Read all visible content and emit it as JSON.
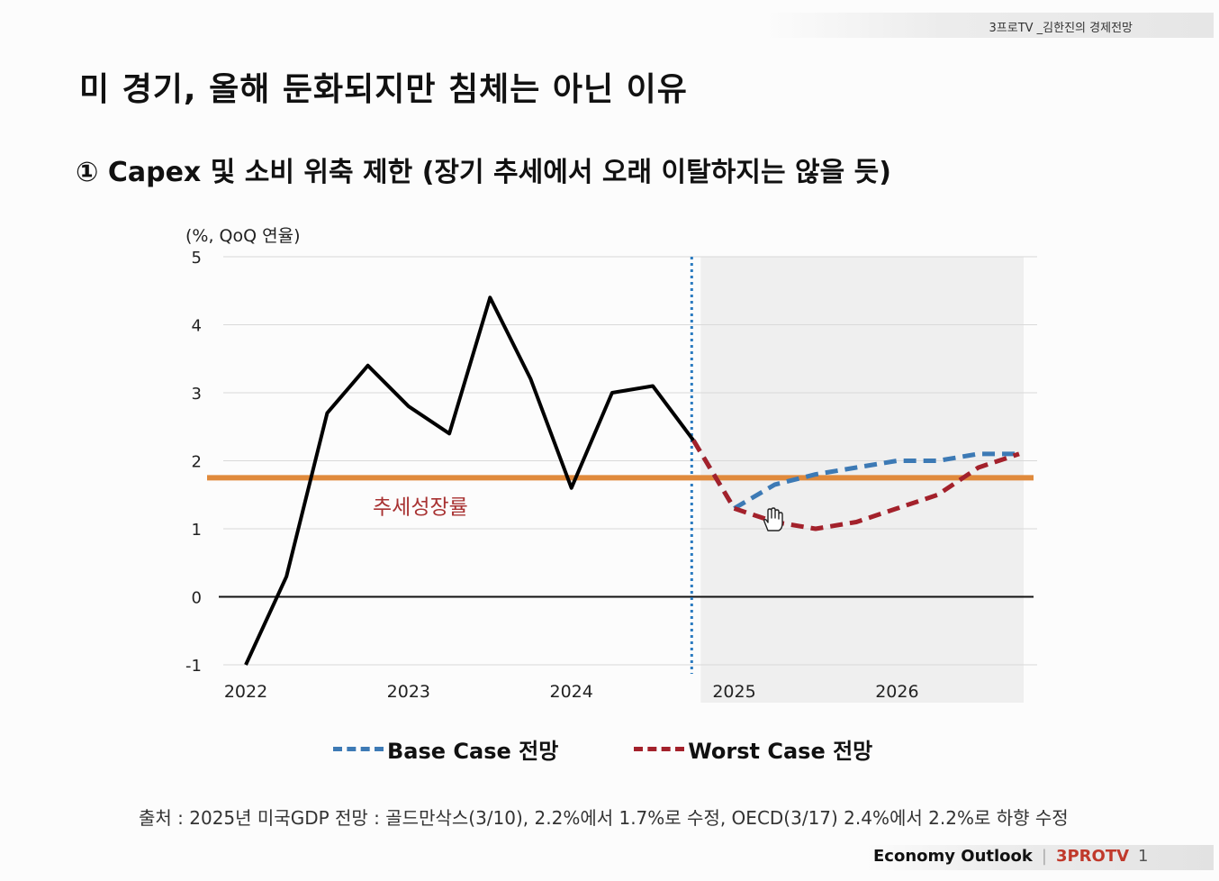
{
  "header": {
    "channel_label": "3프로TV _김한진의 경제전망"
  },
  "slide": {
    "title": "미 경기, 올해 둔화되지만 침체는 아닌 이유",
    "subtitle": "① Capex 및 소비 위축 제한 (장기 추세에서 오래 이탈하지는 않을 듯)"
  },
  "chart_data": {
    "type": "line",
    "ylabel": "(%, QoQ 연율)",
    "ylim": [
      -1,
      5
    ],
    "yticks": [
      "5",
      "4",
      "3",
      "2",
      "1",
      "0",
      "-1"
    ],
    "x_tick_labels": [
      "2022",
      "2023",
      "2024",
      "2025",
      "2026"
    ],
    "x_range": [
      2022.0,
      2026.75
    ],
    "forecast_start": 2024.75,
    "forecast_shade_end": 2026.75,
    "reference_line": {
      "value": 1.75,
      "label": "추세성장률",
      "color": "#e08a3c",
      "label_color": "#a83232"
    },
    "series": [
      {
        "name": "actual",
        "style": "solid",
        "color": "#000000",
        "x": [
          2022.0,
          2022.25,
          2022.5,
          2022.75,
          2023.0,
          2023.25,
          2023.5,
          2023.75,
          2024.0,
          2024.25,
          2024.5,
          2024.75
        ],
        "values": [
          -1.0,
          0.3,
          2.7,
          3.4,
          2.8,
          2.4,
          4.4,
          3.2,
          1.6,
          3.0,
          3.1,
          2.3
        ]
      },
      {
        "name": "Base Case 전망",
        "style": "dashed",
        "color": "#3d7ab5",
        "x": [
          2024.75,
          2025.0,
          2025.25,
          2025.5,
          2025.75,
          2026.0,
          2026.25,
          2026.5,
          2026.75
        ],
        "values": [
          2.3,
          1.3,
          1.65,
          1.8,
          1.9,
          2.0,
          2.0,
          2.1,
          2.1
        ]
      },
      {
        "name": "Worst Case 전망",
        "style": "dashed",
        "color": "#a3212b",
        "x": [
          2024.75,
          2025.0,
          2025.25,
          2025.5,
          2025.75,
          2026.0,
          2026.25,
          2026.5,
          2026.75
        ],
        "values": [
          2.3,
          1.3,
          1.1,
          1.0,
          1.1,
          1.3,
          1.5,
          1.9,
          2.1
        ]
      }
    ]
  },
  "legend": {
    "base_label": "Base Case 전망",
    "worst_label": "Worst Case 전망",
    "base_color": "#3d7ab5",
    "worst_color": "#a3212b"
  },
  "source": "출처 : 2025년 미국GDP 전망 : 골드만삭스(3/10), 2.2%에서 1.7%로 수정,  OECD(3/17) 2.4%에서 2.2%로 하향 수정",
  "footer": {
    "brand": "Economy Outlook",
    "logo": "3PROTV",
    "page": "1"
  }
}
